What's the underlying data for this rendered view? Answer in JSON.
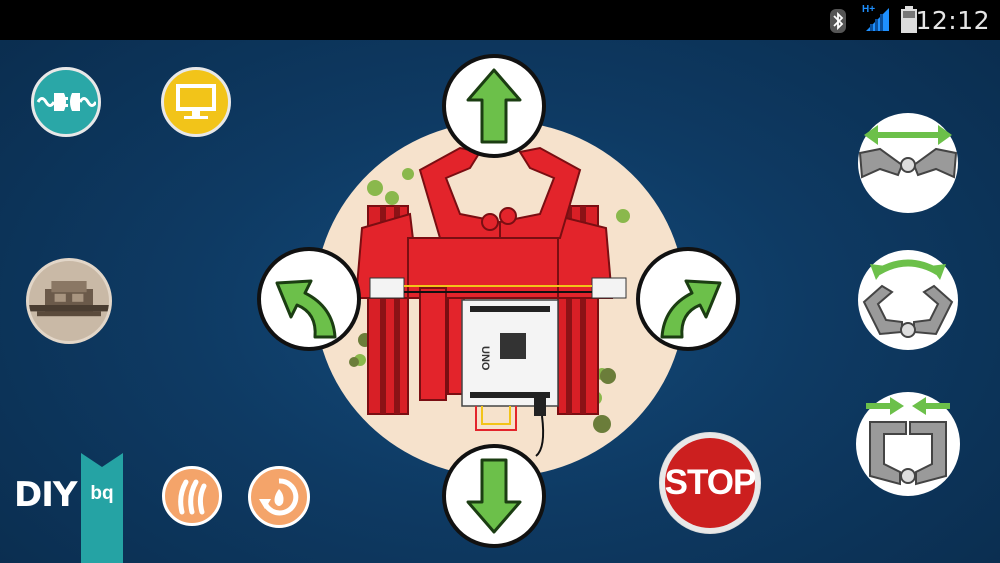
{
  "status_bar": {
    "time": "12:12",
    "network_label": "H+",
    "icons": [
      "bluetooth-icon",
      "signal-icon",
      "battery-icon"
    ]
  },
  "left_panel": {
    "buttons": [
      "connect-plug-icon",
      "monitor-icon",
      "robot-photo"
    ],
    "branding": {
      "diy_text": "DIY",
      "bq_text": "bq"
    },
    "tool_buttons": [
      "claw-scratch-icon",
      "fire-cycle-icon"
    ]
  },
  "center": {
    "controls": [
      "forward",
      "turn-left",
      "turn-right",
      "backward"
    ],
    "robot_image": "red-robot-with-arduino-uno"
  },
  "right_panel": {
    "stop_label": "STOP",
    "claw_controls": [
      "claw-open",
      "claw-rotate",
      "claw-close"
    ]
  },
  "colors": {
    "background": "#0e3a63",
    "arrow_green": "#6cc04a",
    "stop_red": "#cc1f1f",
    "teal": "#2aa7a7",
    "yellow": "#f2c419",
    "robot_red": "#e3242b"
  }
}
